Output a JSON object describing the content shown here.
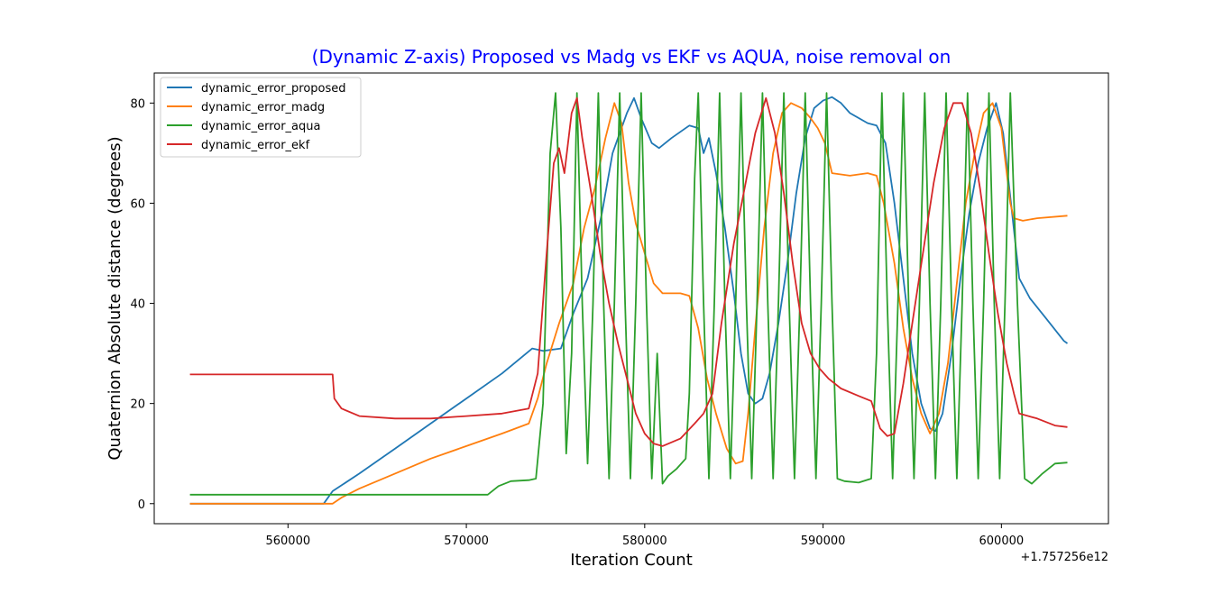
{
  "chart_data": {
    "type": "line",
    "title": "(Dynamic Z-axis) Proposed vs Madg vs EKF vs AQUA, noise removal on",
    "title_color": "#0000ff",
    "xlabel": "Iteration Count",
    "ylabel": "Quaternion Absolute distance (degrees)",
    "x_offset_label": "+1.757256e12",
    "xlim": [
      552500,
      606000
    ],
    "ylim": [
      -4,
      86
    ],
    "xticks": [
      560000,
      570000,
      580000,
      590000,
      600000
    ],
    "xtick_labels": [
      "560000",
      "570000",
      "580000",
      "590000",
      "600000"
    ],
    "yticks": [
      0,
      20,
      40,
      60,
      80
    ],
    "ytick_labels": [
      "0",
      "20",
      "40",
      "60",
      "80"
    ],
    "grid": false,
    "legend_position": "top-left",
    "series": [
      {
        "name": "dynamic_error_proposed",
        "color": "#1f77b4",
        "points": [
          [
            554500,
            0
          ],
          [
            562000,
            0
          ],
          [
            562500,
            2.5
          ],
          [
            564000,
            6
          ],
          [
            566000,
            11
          ],
          [
            568000,
            16
          ],
          [
            570000,
            21
          ],
          [
            572000,
            26
          ],
          [
            573700,
            31
          ],
          [
            574300,
            30.5
          ],
          [
            575300,
            31
          ],
          [
            576000,
            38
          ],
          [
            576800,
            45
          ],
          [
            577600,
            58
          ],
          [
            578200,
            70
          ],
          [
            579000,
            78
          ],
          [
            579400,
            81
          ],
          [
            579800,
            77
          ],
          [
            580400,
            72
          ],
          [
            580800,
            71
          ],
          [
            581500,
            73
          ],
          [
            582500,
            75.5
          ],
          [
            583000,
            75
          ],
          [
            583300,
            70
          ],
          [
            583600,
            73
          ],
          [
            584000,
            66
          ],
          [
            584500,
            55
          ],
          [
            585000,
            42
          ],
          [
            585400,
            30
          ],
          [
            585800,
            22
          ],
          [
            586200,
            20
          ],
          [
            586600,
            21
          ],
          [
            587000,
            26
          ],
          [
            587500,
            36
          ],
          [
            588000,
            48
          ],
          [
            588500,
            62
          ],
          [
            589000,
            73
          ],
          [
            589500,
            79
          ],
          [
            590000,
            80.5
          ],
          [
            590500,
            81.2
          ],
          [
            591000,
            80
          ],
          [
            591500,
            78
          ],
          [
            592500,
            76
          ],
          [
            593000,
            75.5
          ],
          [
            593500,
            72
          ],
          [
            594000,
            60
          ],
          [
            594500,
            45
          ],
          [
            595000,
            30
          ],
          [
            595500,
            20
          ],
          [
            596000,
            15
          ],
          [
            596300,
            14.5
          ],
          [
            596700,
            18
          ],
          [
            597200,
            30
          ],
          [
            597700,
            45
          ],
          [
            598200,
            58
          ],
          [
            598700,
            68
          ],
          [
            599200,
            75
          ],
          [
            599700,
            80
          ],
          [
            600100,
            74
          ],
          [
            600600,
            58
          ],
          [
            601000,
            45
          ],
          [
            601600,
            41
          ],
          [
            602500,
            37
          ],
          [
            603500,
            32.5
          ],
          [
            603700,
            32
          ]
        ]
      },
      {
        "name": "dynamic_error_madg",
        "color": "#ff7f0e",
        "points": [
          [
            554500,
            0
          ],
          [
            562500,
            0
          ],
          [
            563000,
            1.2
          ],
          [
            564000,
            3
          ],
          [
            566000,
            6
          ],
          [
            568000,
            9
          ],
          [
            570000,
            11.5
          ],
          [
            572000,
            14
          ],
          [
            573500,
            16
          ],
          [
            574000,
            21
          ],
          [
            574500,
            28
          ],
          [
            575200,
            36
          ],
          [
            576000,
            44
          ],
          [
            576600,
            55
          ],
          [
            577200,
            63
          ],
          [
            577800,
            73
          ],
          [
            578300,
            80
          ],
          [
            578700,
            76
          ],
          [
            579100,
            64
          ],
          [
            579500,
            56
          ],
          [
            580000,
            50
          ],
          [
            580500,
            44
          ],
          [
            581000,
            42
          ],
          [
            582000,
            42
          ],
          [
            582500,
            41.5
          ],
          [
            583000,
            35
          ],
          [
            583500,
            25
          ],
          [
            584000,
            18
          ],
          [
            584600,
            11
          ],
          [
            585100,
            8
          ],
          [
            585500,
            8.5
          ],
          [
            585800,
            18
          ],
          [
            586200,
            35
          ],
          [
            586700,
            55
          ],
          [
            587200,
            70
          ],
          [
            587700,
            78
          ],
          [
            588200,
            80
          ],
          [
            588800,
            79
          ],
          [
            589300,
            77
          ],
          [
            589700,
            75
          ],
          [
            590100,
            72
          ],
          [
            590500,
            66
          ],
          [
            591500,
            65.5
          ],
          [
            592500,
            66
          ],
          [
            593000,
            65.5
          ],
          [
            593400,
            60
          ],
          [
            594000,
            48
          ],
          [
            594500,
            35
          ],
          [
            595000,
            25
          ],
          [
            595500,
            18
          ],
          [
            596000,
            14
          ],
          [
            596500,
            18
          ],
          [
            597000,
            28
          ],
          [
            597500,
            44
          ],
          [
            598000,
            60
          ],
          [
            598500,
            70
          ],
          [
            599000,
            78
          ],
          [
            599500,
            80
          ],
          [
            600000,
            75
          ],
          [
            600500,
            60
          ],
          [
            600700,
            57
          ],
          [
            601200,
            56.5
          ],
          [
            602000,
            57
          ],
          [
            603700,
            57.5
          ]
        ]
      },
      {
        "name": "dynamic_error_aqua",
        "color": "#2ca02c",
        "points": [
          [
            554500,
            1.8
          ],
          [
            571200,
            1.8
          ],
          [
            571800,
            3.5
          ],
          [
            572500,
            4.5
          ],
          [
            573500,
            4.7
          ],
          [
            573900,
            5
          ],
          [
            574300,
            20
          ],
          [
            574700,
            70
          ],
          [
            575000,
            82
          ],
          [
            575300,
            55
          ],
          [
            575600,
            10
          ],
          [
            575900,
            30
          ],
          [
            576200,
            82
          ],
          [
            576500,
            40
          ],
          [
            576800,
            8
          ],
          [
            577100,
            40
          ],
          [
            577400,
            82
          ],
          [
            577700,
            40
          ],
          [
            578000,
            5
          ],
          [
            578300,
            40
          ],
          [
            578600,
            82
          ],
          [
            578900,
            40
          ],
          [
            579200,
            5
          ],
          [
            579500,
            40
          ],
          [
            579800,
            82
          ],
          [
            580100,
            40
          ],
          [
            580400,
            5
          ],
          [
            580700,
            30
          ],
          [
            581000,
            4
          ],
          [
            581300,
            5.5
          ],
          [
            581800,
            7
          ],
          [
            582300,
            9
          ],
          [
            582500,
            22
          ],
          [
            582800,
            65
          ],
          [
            583000,
            82
          ],
          [
            583300,
            40
          ],
          [
            583600,
            5
          ],
          [
            583900,
            40
          ],
          [
            584200,
            82
          ],
          [
            584500,
            40
          ],
          [
            584800,
            5
          ],
          [
            585100,
            40
          ],
          [
            585400,
            82
          ],
          [
            585700,
            40
          ],
          [
            586000,
            5
          ],
          [
            586300,
            40
          ],
          [
            586600,
            82
          ],
          [
            586900,
            40
          ],
          [
            587200,
            5
          ],
          [
            587500,
            40
          ],
          [
            587800,
            82
          ],
          [
            588100,
            40
          ],
          [
            588400,
            5
          ],
          [
            588700,
            40
          ],
          [
            589000,
            82
          ],
          [
            589300,
            40
          ],
          [
            589600,
            5
          ],
          [
            589900,
            40
          ],
          [
            590200,
            82
          ],
          [
            590500,
            40
          ],
          [
            590800,
            5
          ],
          [
            591200,
            4.5
          ],
          [
            592000,
            4.2
          ],
          [
            592700,
            5
          ],
          [
            593000,
            30
          ],
          [
            593300,
            82
          ],
          [
            593600,
            40
          ],
          [
            593900,
            5
          ],
          [
            594200,
            40
          ],
          [
            594500,
            82
          ],
          [
            594800,
            40
          ],
          [
            595100,
            5
          ],
          [
            595400,
            40
          ],
          [
            595700,
            82
          ],
          [
            596000,
            40
          ],
          [
            596300,
            5
          ],
          [
            596600,
            40
          ],
          [
            596900,
            82
          ],
          [
            597200,
            40
          ],
          [
            597500,
            5
          ],
          [
            597800,
            40
          ],
          [
            598100,
            82
          ],
          [
            598400,
            40
          ],
          [
            598700,
            5
          ],
          [
            599000,
            40
          ],
          [
            599300,
            82
          ],
          [
            599600,
            40
          ],
          [
            599900,
            5
          ],
          [
            600200,
            40
          ],
          [
            600500,
            82
          ],
          [
            600900,
            40
          ],
          [
            601300,
            5
          ],
          [
            601700,
            4
          ],
          [
            602300,
            6
          ],
          [
            603000,
            8
          ],
          [
            603700,
            8.2
          ]
        ]
      },
      {
        "name": "dynamic_error_ekf",
        "color": "#d62728",
        "points": [
          [
            554500,
            25.8
          ],
          [
            562500,
            25.8
          ],
          [
            562600,
            21
          ],
          [
            563000,
            19
          ],
          [
            564000,
            17.5
          ],
          [
            566000,
            17
          ],
          [
            568000,
            17
          ],
          [
            570000,
            17.5
          ],
          [
            572000,
            18
          ],
          [
            573500,
            19
          ],
          [
            574000,
            26
          ],
          [
            574500,
            50
          ],
          [
            574900,
            68
          ],
          [
            575200,
            71
          ],
          [
            575500,
            66
          ],
          [
            575900,
            78
          ],
          [
            576200,
            81
          ],
          [
            576500,
            73
          ],
          [
            577000,
            62
          ],
          [
            577500,
            50
          ],
          [
            578000,
            40
          ],
          [
            578500,
            32
          ],
          [
            579000,
            25
          ],
          [
            579500,
            18
          ],
          [
            580000,
            14
          ],
          [
            580500,
            12
          ],
          [
            581000,
            11.5
          ],
          [
            582000,
            13
          ],
          [
            582800,
            16
          ],
          [
            583300,
            18
          ],
          [
            583800,
            22
          ],
          [
            584300,
            36
          ],
          [
            585000,
            52
          ],
          [
            585600,
            63
          ],
          [
            586200,
            74
          ],
          [
            586800,
            81
          ],
          [
            587300,
            74
          ],
          [
            587800,
            62
          ],
          [
            588300,
            48
          ],
          [
            588800,
            36
          ],
          [
            589300,
            30
          ],
          [
            589800,
            27
          ],
          [
            590300,
            25
          ],
          [
            591000,
            23
          ],
          [
            592000,
            21.5
          ],
          [
            592700,
            20.5
          ],
          [
            593200,
            15
          ],
          [
            593600,
            13.5
          ],
          [
            594000,
            14
          ],
          [
            594500,
            24
          ],
          [
            595000,
            36
          ],
          [
            595600,
            50
          ],
          [
            596200,
            64
          ],
          [
            596800,
            75
          ],
          [
            597300,
            80
          ],
          [
            597800,
            80
          ],
          [
            598300,
            74
          ],
          [
            598800,
            63
          ],
          [
            599300,
            50
          ],
          [
            599800,
            38
          ],
          [
            600300,
            28
          ],
          [
            600700,
            22
          ],
          [
            601000,
            18
          ],
          [
            602000,
            17
          ],
          [
            603000,
            15.6
          ],
          [
            603700,
            15.3
          ]
        ]
      }
    ]
  }
}
